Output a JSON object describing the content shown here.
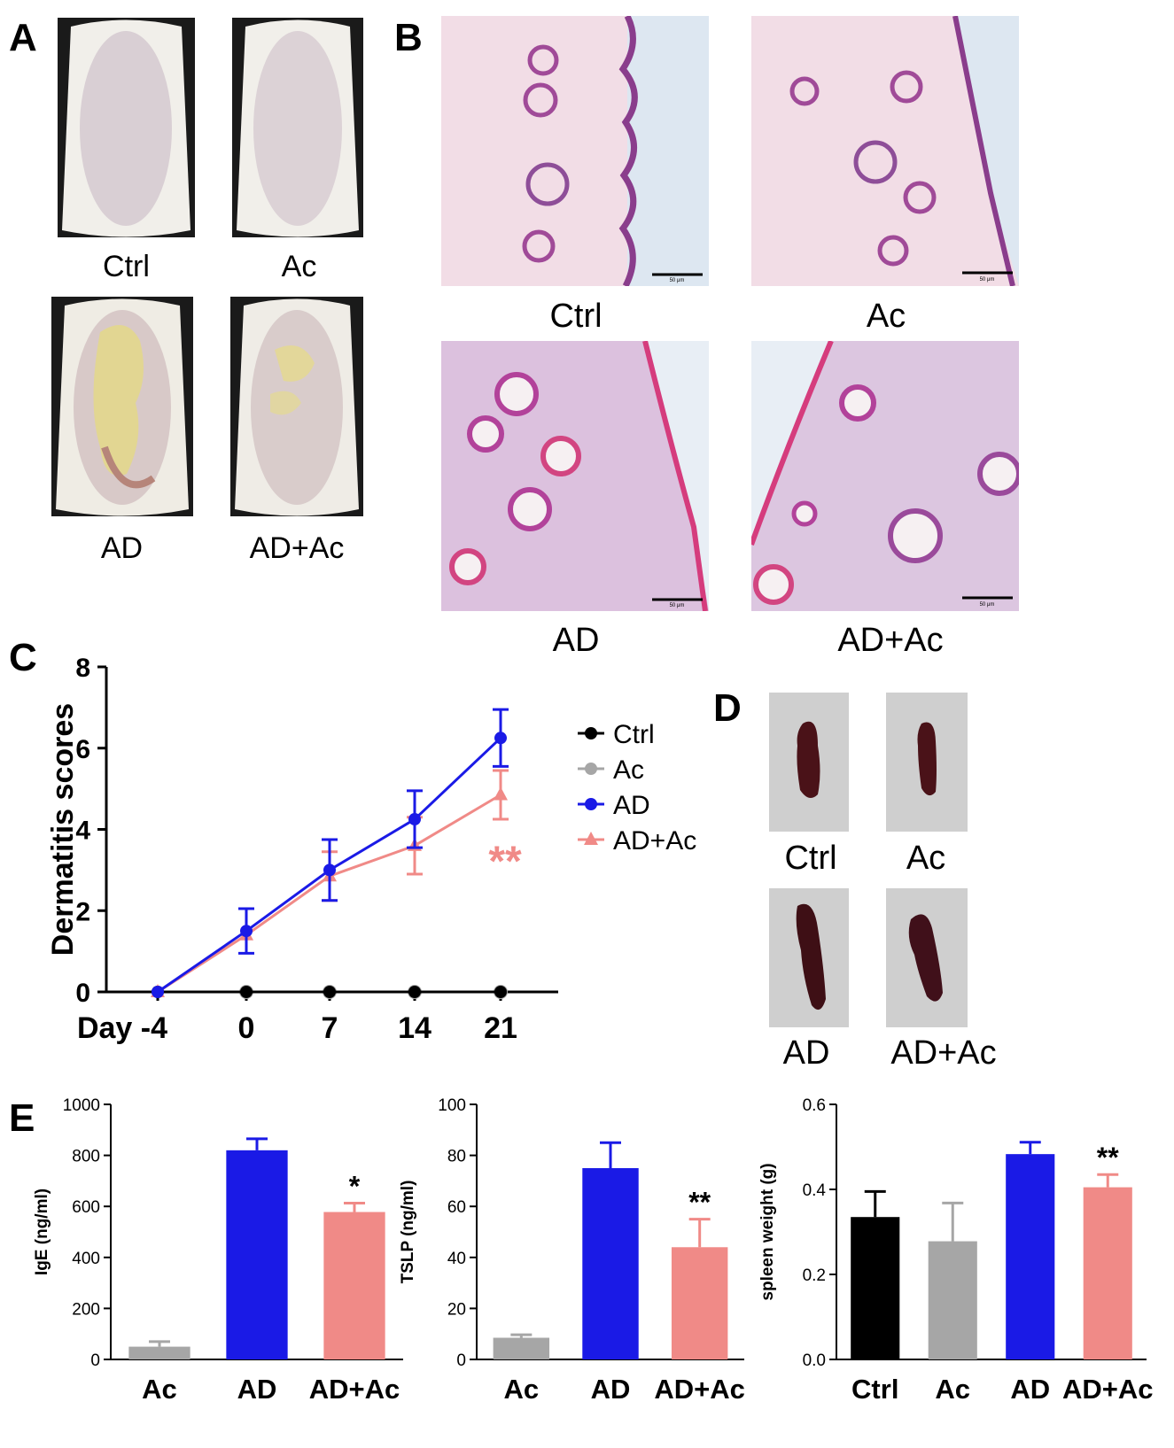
{
  "panels": {
    "A": {
      "letter": "A",
      "labels": [
        "Ctrl",
        "Ac",
        "AD",
        "AD+Ac"
      ]
    },
    "B": {
      "letter": "B",
      "labels": [
        "Ctrl",
        "Ac",
        "AD",
        "AD+Ac"
      ],
      "scalebar": "50 μm"
    },
    "C": {
      "letter": "C"
    },
    "D": {
      "letter": "D",
      "labels": [
        "Ctrl",
        "Ac",
        "AD",
        "AD+Ac"
      ]
    },
    "E": {
      "letter": "E"
    }
  },
  "colors": {
    "Ctrl": "#000000",
    "Ac": "#a6a6a6",
    "AD": "#1a1ae6",
    "AD+Ac": "#f08a87"
  },
  "chart_data": [
    {
      "id": "C",
      "type": "line",
      "ylabel": "Dermatitis scores",
      "x_ticks": [
        "Day -4",
        "0",
        "7",
        "14",
        "21"
      ],
      "ylim": [
        0,
        8
      ],
      "yticks": [
        0,
        2,
        4,
        6,
        8
      ],
      "series": [
        {
          "name": "Ctrl",
          "values": [
            0,
            0,
            0,
            0,
            0
          ],
          "err": [
            0,
            0,
            0,
            0,
            0
          ],
          "marker": "circle"
        },
        {
          "name": "Ac",
          "values": [
            0,
            0,
            0,
            0,
            0
          ],
          "err": [
            0,
            0,
            0,
            0,
            0
          ],
          "marker": "circle"
        },
        {
          "name": "AD",
          "values": [
            0,
            1.5,
            3.0,
            4.25,
            6.25
          ],
          "err": [
            0,
            0.55,
            0.75,
            0.7,
            0.7
          ],
          "marker": "circle"
        },
        {
          "name": "AD+Ac",
          "values": [
            0,
            1.4,
            2.85,
            3.6,
            4.85
          ],
          "err": [
            0,
            0,
            0.6,
            0.7,
            0.6
          ],
          "marker": "triangle"
        }
      ],
      "annotation": "**",
      "legend": "right"
    },
    {
      "id": "E1",
      "type": "bar",
      "categories": [
        "Ac",
        "AD",
        "AD+Ac"
      ],
      "values": [
        50,
        820,
        578
      ],
      "err": [
        20,
        45,
        35
      ],
      "ylabel": "IgE (ng/ml)",
      "ylim": [
        0,
        1000
      ],
      "yticks": [
        0,
        200,
        400,
        600,
        800,
        1000
      ],
      "annotations": [
        "",
        "",
        "*"
      ]
    },
    {
      "id": "E2",
      "type": "bar",
      "categories": [
        "Ac",
        "AD",
        "AD+Ac"
      ],
      "values": [
        8.5,
        75,
        44
      ],
      "err": [
        1.2,
        10,
        11
      ],
      "ylabel": "TSLP (ng/ml)",
      "ylim": [
        0,
        100
      ],
      "yticks": [
        0,
        20,
        40,
        60,
        80,
        100
      ],
      "annotations": [
        "",
        "",
        "**"
      ]
    },
    {
      "id": "E3",
      "type": "bar",
      "categories": [
        "Ctrl",
        "Ac",
        "AD",
        "AD+Ac"
      ],
      "values": [
        0.335,
        0.278,
        0.483,
        0.405
      ],
      "err": [
        0.06,
        0.09,
        0.028,
        0.03
      ],
      "ylabel": "spleen weight (g)",
      "ylim": [
        0,
        0.6
      ],
      "yticks": [
        0.0,
        0.2,
        0.4,
        0.6
      ],
      "annotations": [
        "",
        "",
        "",
        "**"
      ]
    }
  ]
}
